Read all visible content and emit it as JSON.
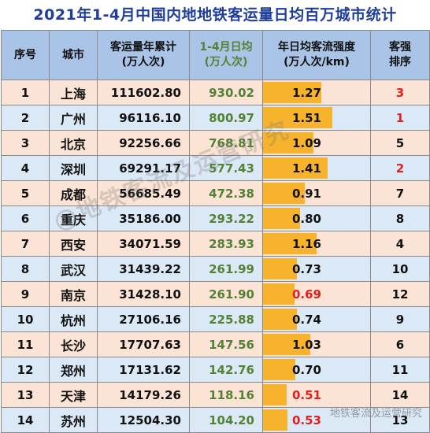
{
  "title": "2021年1-4月中国内地地铁客运量日均百万城市统计",
  "headers": {
    "seq": "序号",
    "city": "城市",
    "total_line1": "客运量年累计",
    "total_line2": "(万人次)",
    "daily_line1": "1-4月日均",
    "daily_line2": "(万人次)",
    "intensity_line1": "年日均客流强度",
    "intensity_line2": "(万人次/km)",
    "rank_line1": "客强",
    "rank_line2": "排序"
  },
  "rows": [
    {
      "seq": "1",
      "city": "上海",
      "total": "111602.80",
      "daily": "930.02",
      "intensity": "1.27",
      "rank": "3"
    },
    {
      "seq": "2",
      "city": "广州",
      "total": "96116.10",
      "daily": "800.97",
      "intensity": "1.51",
      "rank": "1"
    },
    {
      "seq": "3",
      "city": "北京",
      "total": "92256.66",
      "daily": "768.81",
      "intensity": "1.09",
      "rank": "5"
    },
    {
      "seq": "4",
      "city": "深圳",
      "total": "69291.17",
      "daily": "577.43",
      "intensity": "1.41",
      "rank": "2"
    },
    {
      "seq": "5",
      "city": "成都",
      "total": "56685.49",
      "daily": "472.38",
      "intensity": "0.91",
      "rank": "7"
    },
    {
      "seq": "6",
      "city": "重庆",
      "total": "35186.00",
      "daily": "293.22",
      "intensity": "0.80",
      "rank": "8"
    },
    {
      "seq": "7",
      "city": "西安",
      "total": "34071.59",
      "daily": "283.93",
      "intensity": "1.16",
      "rank": "4"
    },
    {
      "seq": "8",
      "city": "武汉",
      "total": "31439.22",
      "daily": "261.99",
      "intensity": "0.73",
      "rank": "10"
    },
    {
      "seq": "9",
      "city": "南京",
      "total": "31428.10",
      "daily": "261.90",
      "intensity": "0.69",
      "rank": "12"
    },
    {
      "seq": "10",
      "city": "杭州",
      "total": "27106.16",
      "daily": "225.88",
      "intensity": "0.74",
      "rank": "9"
    },
    {
      "seq": "11",
      "city": "长沙",
      "total": "17707.63",
      "daily": "147.56",
      "intensity": "1.03",
      "rank": "6"
    },
    {
      "seq": "12",
      "city": "郑州",
      "total": "17131.62",
      "daily": "142.76",
      "intensity": "0.70",
      "rank": "11"
    },
    {
      "seq": "13",
      "city": "天津",
      "total": "14179.26",
      "daily": "118.16",
      "intensity": "0.51",
      "rank": "14"
    },
    {
      "seq": "14",
      "city": "苏州",
      "total": "12504.30",
      "daily": "104.20",
      "intensity": "0.53",
      "rank": "13"
    }
  ],
  "highlight": {
    "bar_color": "#f7b32b",
    "red_color": "#e0201f",
    "daily_color": "#548235",
    "title_color": "#1f3d9a",
    "red_ranks": [
      "1",
      "2",
      "3"
    ],
    "red_intensity_below": 0.7
  },
  "watermark": {
    "diagonal": "@地铁客流及运营研究",
    "corner": "地铁客流及运营研究"
  }
}
